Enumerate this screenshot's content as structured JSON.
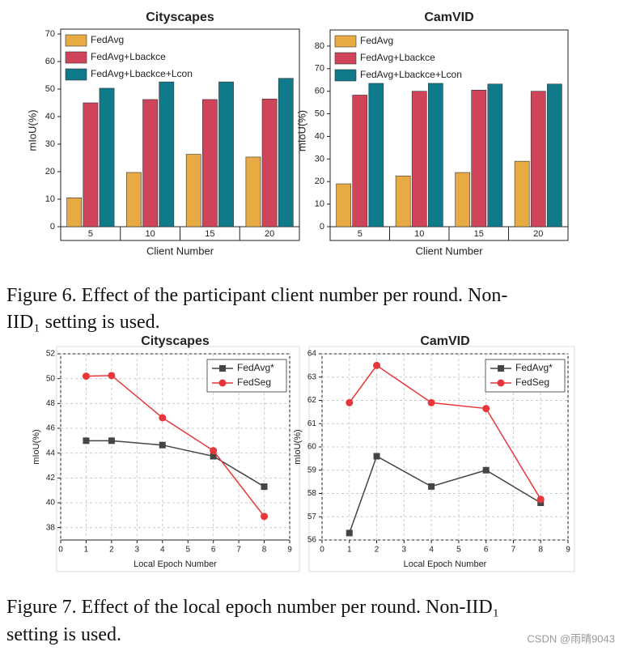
{
  "chart_data": [
    {
      "type": "bar",
      "title": "Cityscapes",
      "x_label": "Client Number",
      "y_label": "mIoU(%)",
      "categories": [
        "5",
        "10",
        "15",
        "20"
      ],
      "series": [
        {
          "name": "FedAvg",
          "color": "#e8aa42",
          "values": [
            10.5,
            19.7,
            26.3,
            25.3
          ]
        },
        {
          "name": "FedAvg+Lbackce",
          "color": "#cf4459",
          "values": [
            45,
            46.2,
            46.2,
            46.4
          ]
        },
        {
          "name": "FedAvg+Lbackce+Lcon",
          "color": "#0e7a8a",
          "values": [
            50.3,
            52.6,
            52.6,
            53.9
          ]
        }
      ],
      "ylim": [
        0,
        70
      ],
      "yticks": [
        0,
        10,
        20,
        30,
        40,
        50,
        60,
        70
      ],
      "legend": "upper-left"
    },
    {
      "type": "bar",
      "title": "CamVID",
      "x_label": "Client Number",
      "y_label": "mIoU(%)",
      "categories": [
        "5",
        "10",
        "15",
        "20"
      ],
      "series": [
        {
          "name": "FedAvg",
          "color": "#e8aa42",
          "values": [
            19,
            22.5,
            24,
            29
          ]
        },
        {
          "name": "FedAvg+Lbackce",
          "color": "#cf4459",
          "values": [
            58.3,
            60,
            60.5,
            60
          ]
        },
        {
          "name": "FedAvg+Lbackce+Lcon",
          "color": "#0e7a8a",
          "values": [
            63.5,
            63.5,
            63.2,
            63.2
          ]
        }
      ],
      "ylim": [
        0,
        85
      ],
      "yticks": [
        0,
        10,
        20,
        30,
        40,
        50,
        60,
        70,
        80
      ],
      "legend": "upper-left"
    },
    {
      "type": "line",
      "title": "Cityscapes",
      "x_label": "Local Epoch Number",
      "y_label": "mIoU(%)",
      "x": [
        1,
        2,
        4,
        6,
        8
      ],
      "series": [
        {
          "name": "FedAvg*",
          "color": "#454545",
          "marker": "square",
          "values": [
            45,
            45,
            44.65,
            43.75,
            41.3
          ]
        },
        {
          "name": "FedSeg",
          "color": "#e8373a",
          "marker": "circle",
          "values": [
            50.2,
            50.25,
            46.85,
            44.2,
            38.9
          ]
        }
      ],
      "xlim": [
        0,
        9
      ],
      "xticks": [
        0,
        1,
        2,
        3,
        4,
        5,
        6,
        7,
        8,
        9
      ],
      "ylim": [
        37,
        52
      ],
      "yticks": [
        38,
        40,
        42,
        44,
        46,
        48,
        50,
        52
      ],
      "grid": true,
      "legend": "upper-right"
    },
    {
      "type": "line",
      "title": "CamVID",
      "x_label": "Local Epoch Number",
      "y_label": "mIoU(%)",
      "x": [
        1,
        2,
        4,
        6,
        8
      ],
      "series": [
        {
          "name": "FedAvg*",
          "color": "#454545",
          "marker": "square",
          "values": [
            56.3,
            59.6,
            58.3,
            59,
            57.6
          ]
        },
        {
          "name": "FedSeg",
          "color": "#e8373a",
          "marker": "circle",
          "values": [
            61.9,
            63.5,
            61.9,
            61.65,
            57.75
          ]
        }
      ],
      "xlim": [
        0,
        9
      ],
      "xticks": [
        0,
        1,
        2,
        3,
        4,
        5,
        6,
        7,
        8,
        9
      ],
      "ylim": [
        56,
        64
      ],
      "yticks": [
        56,
        57,
        58,
        59,
        60,
        61,
        62,
        63,
        64
      ],
      "grid": true,
      "legend": "upper-right"
    }
  ],
  "captions": [
    [
      "Figure 6. Effect of the participant client number per round. Non-",
      "IID₁ setting is used."
    ],
    [
      "Figure 7. Effect of the local epoch number per round. Non-IID₁",
      "setting is used."
    ]
  ],
  "watermark": "CSDN @雨晴9043"
}
